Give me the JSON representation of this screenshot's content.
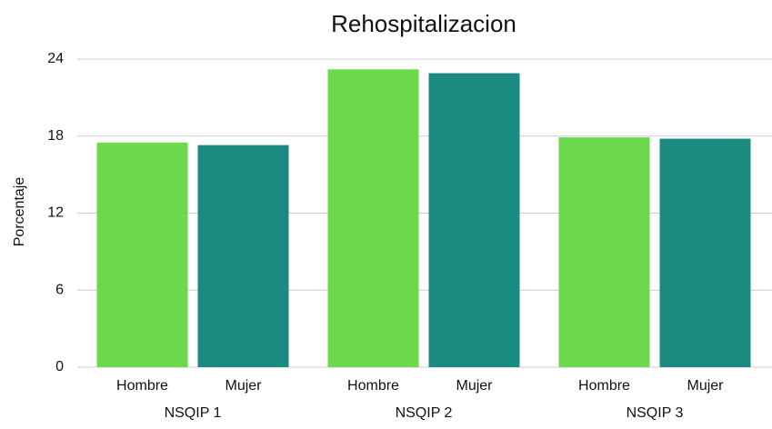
{
  "chart_data": {
    "type": "bar",
    "title": "Rehospitalizacion",
    "y_label": "Porcentaje",
    "categories": [
      "NSQIP 1",
      "NSQIP 2",
      "NSQIP 3"
    ],
    "series": [
      {
        "name": "Hombre",
        "color": "#6bd94b",
        "values": [
          17.5,
          23.2,
          17.9
        ]
      },
      {
        "name": "Mujer",
        "color": "#1b8a80",
        "values": [
          17.3,
          22.9,
          17.8
        ]
      }
    ],
    "ylim": [
      0,
      24
    ],
    "yticks": [
      0,
      6,
      12,
      18,
      24
    ],
    "grid": true
  }
}
